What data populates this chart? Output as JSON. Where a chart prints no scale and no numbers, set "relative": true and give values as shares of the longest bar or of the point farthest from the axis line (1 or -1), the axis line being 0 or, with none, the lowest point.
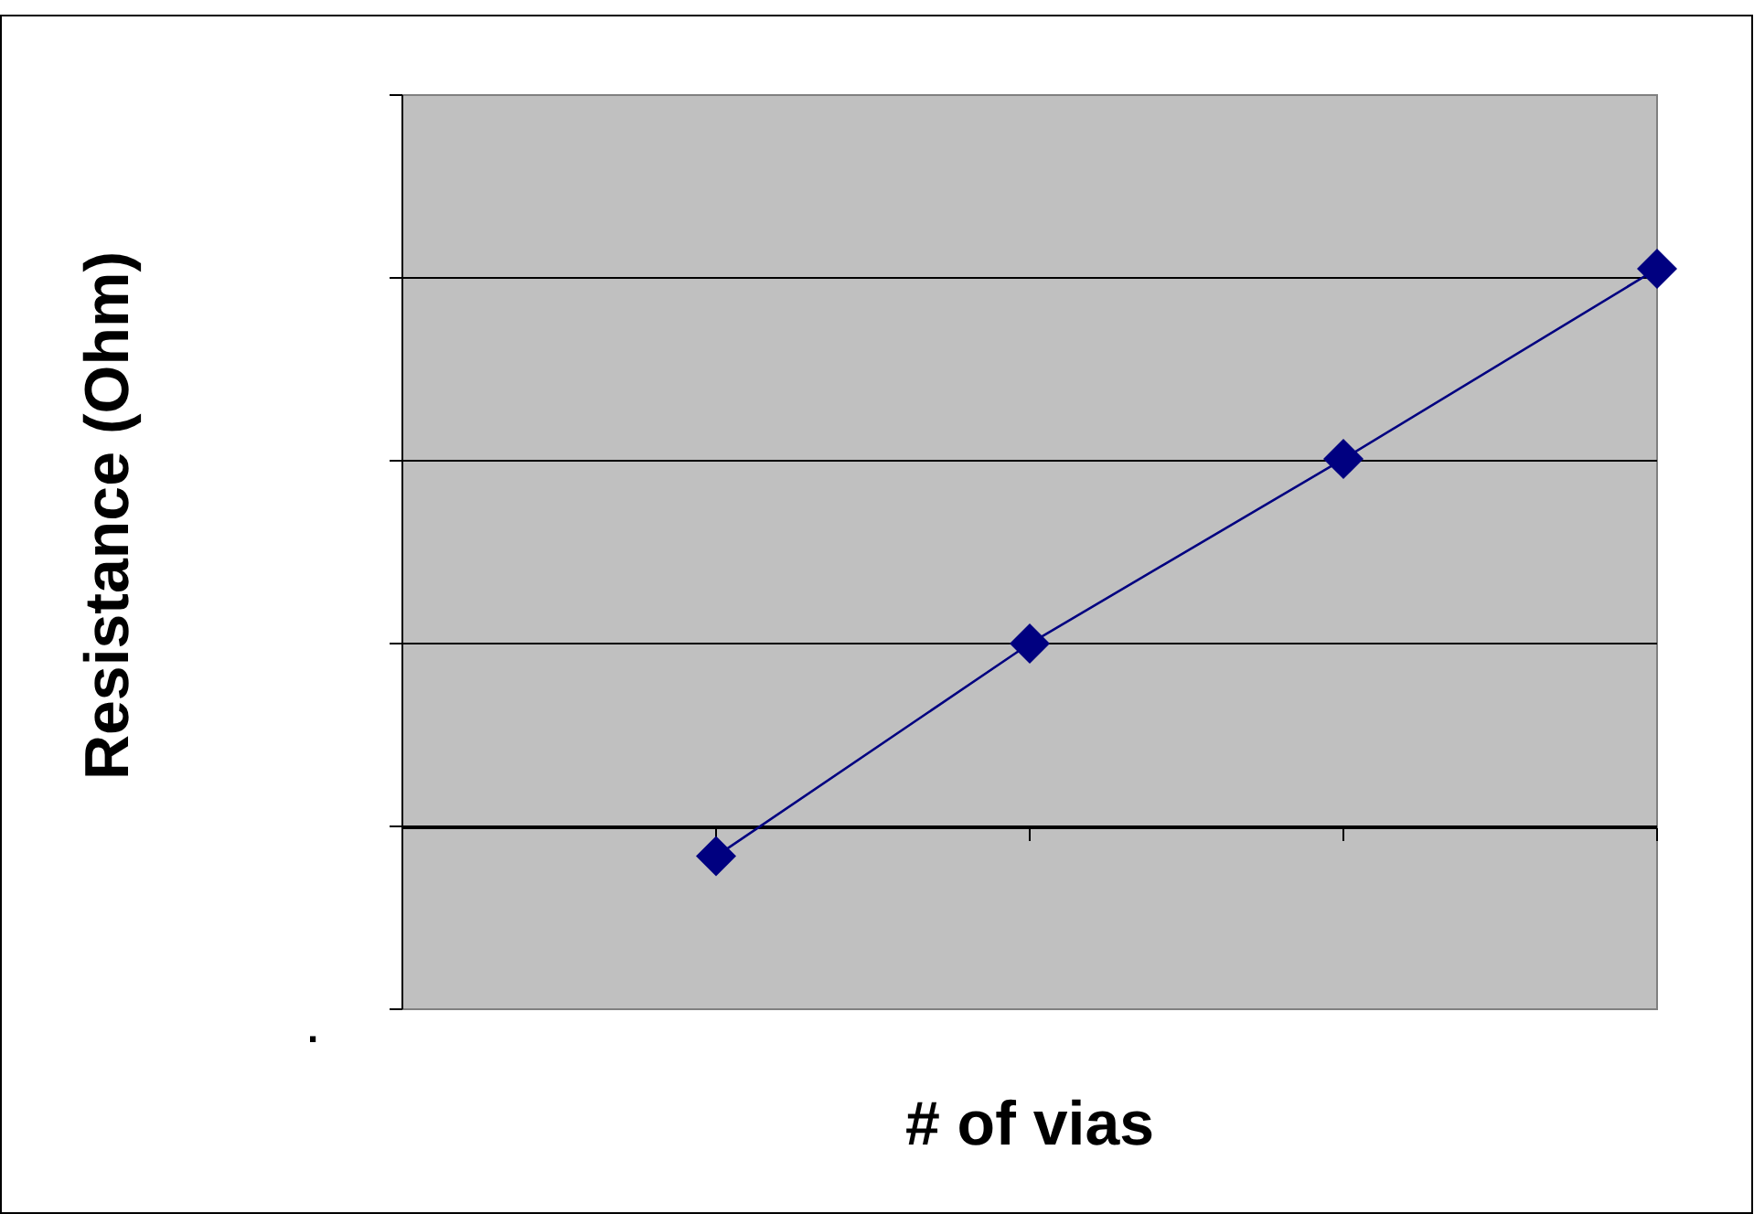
{
  "chart_data": {
    "type": "line",
    "xlabel": "# of vias",
    "ylabel": "Resistance (Ohm)",
    "categories": [
      null,
      null,
      null,
      null
    ],
    "series": [
      {
        "color": "#000080",
        "values": [
          -0.05,
          0.33,
          0.66,
          1
        ]
      }
    ],
    "relative": true,
    "grid": "y",
    "marker": "diamond",
    "line_style": "solid",
    "annotations": [
      "."
    ]
  }
}
